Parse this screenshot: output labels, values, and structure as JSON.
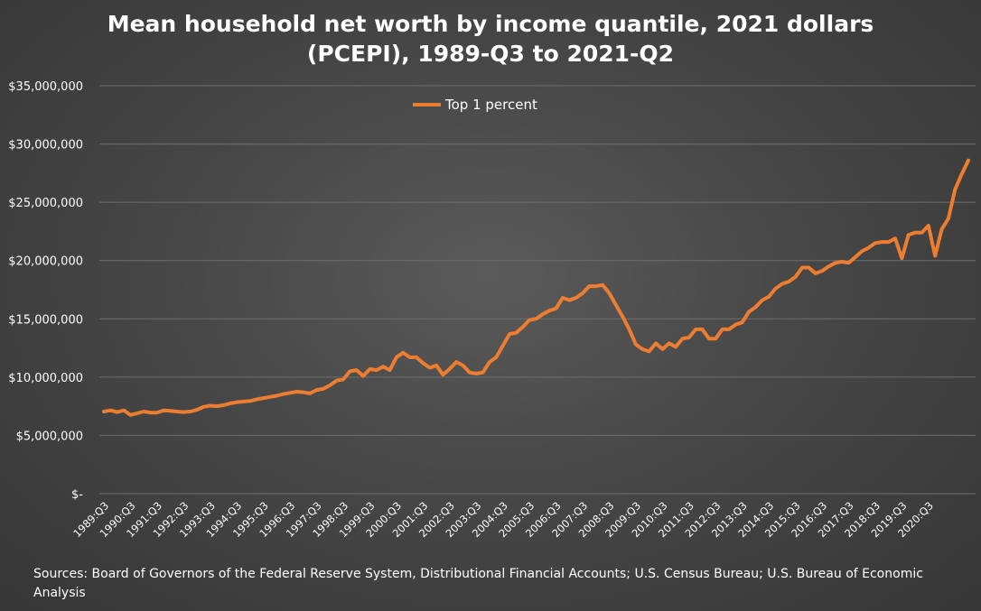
{
  "chart_data": {
    "type": "line",
    "title_lines": [
      "Mean household net worth by income quantile, 2021 dollars",
      "(PCEPI), 1989-Q3 to 2021-Q2"
    ],
    "xlabel": "",
    "ylabel": "",
    "ylim": [
      0,
      35000000
    ],
    "y_ticks": [
      0,
      5000000,
      10000000,
      15000000,
      20000000,
      25000000,
      30000000,
      35000000
    ],
    "y_tick_labels": [
      "$-",
      "$5,000,000",
      "$10,000,000",
      "$15,000,000",
      "$20,000,000",
      "$25,000,000",
      "$30,000,000",
      "$35,000,000"
    ],
    "x_tick_labels": [
      "1989:Q3",
      "1990:Q3",
      "1991:Q3",
      "1992:Q3",
      "1993:Q3",
      "1994:Q3",
      "1995:Q3",
      "1996:Q3",
      "1997:Q3",
      "1998:Q3",
      "1999:Q3",
      "2000:Q3",
      "2001:Q3",
      "2002:Q3",
      "2003:Q3",
      "2004:Q3",
      "2005:Q3",
      "2006:Q3",
      "2007:Q3",
      "2008:Q3",
      "2009:Q3",
      "2010:Q3",
      "2011:Q3",
      "2012:Q3",
      "2013:Q3",
      "2014:Q3",
      "2015:Q3",
      "2016:Q3",
      "2017:Q3",
      "2018:Q3",
      "2019:Q3",
      "2020:Q3"
    ],
    "grid": true,
    "legend_position": "top-left",
    "series": [
      {
        "name": "Top 1 percent",
        "color": "#ed7d31",
        "values": [
          7050000,
          7150000,
          7000000,
          7150000,
          6750000,
          6900000,
          7050000,
          6950000,
          6950000,
          7150000,
          7100000,
          7050000,
          7000000,
          7050000,
          7200000,
          7450000,
          7550000,
          7500000,
          7600000,
          7750000,
          7850000,
          7900000,
          7950000,
          8100000,
          8200000,
          8300000,
          8400000,
          8550000,
          8650000,
          8750000,
          8700000,
          8600000,
          8900000,
          9000000,
          9300000,
          9700000,
          9800000,
          10500000,
          10600000,
          10100000,
          10700000,
          10600000,
          10900000,
          10600000,
          11700000,
          12100000,
          11700000,
          11700000,
          11200000,
          10800000,
          11000000,
          10200000,
          10700000,
          11300000,
          11000000,
          10400000,
          10300000,
          10400000,
          11300000,
          11700000,
          12700000,
          13700000,
          13800000,
          14300000,
          14900000,
          15000000,
          15400000,
          15700000,
          15900000,
          16800000,
          16600000,
          16800000,
          17200000,
          17800000,
          17800000,
          17900000,
          17200000,
          16200000,
          15200000,
          14100000,
          12800000,
          12400000,
          12200000,
          12900000,
          12400000,
          12900000,
          12600000,
          13300000,
          13400000,
          14100000,
          14100000,
          13300000,
          13300000,
          14100000,
          14100000,
          14500000,
          14700000,
          15600000,
          16000000,
          16600000,
          16900000,
          17600000,
          18000000,
          18200000,
          18600000,
          19400000,
          19400000,
          18900000,
          19100000,
          19500000,
          19800000,
          19900000,
          19800000,
          20300000,
          20800000,
          21100000,
          21500000,
          21600000,
          21600000,
          21900000,
          20200000,
          22200000,
          22400000,
          22400000,
          23000000,
          20400000,
          22700000,
          23600000,
          26100000,
          27400000,
          28600000
        ]
      }
    ]
  },
  "source_text": "Sources: Board of Governors of the Federal Reserve System, Distributional Financial Accounts; U.S. Census Bureau; U.S. Bureau of Economic Analysis"
}
